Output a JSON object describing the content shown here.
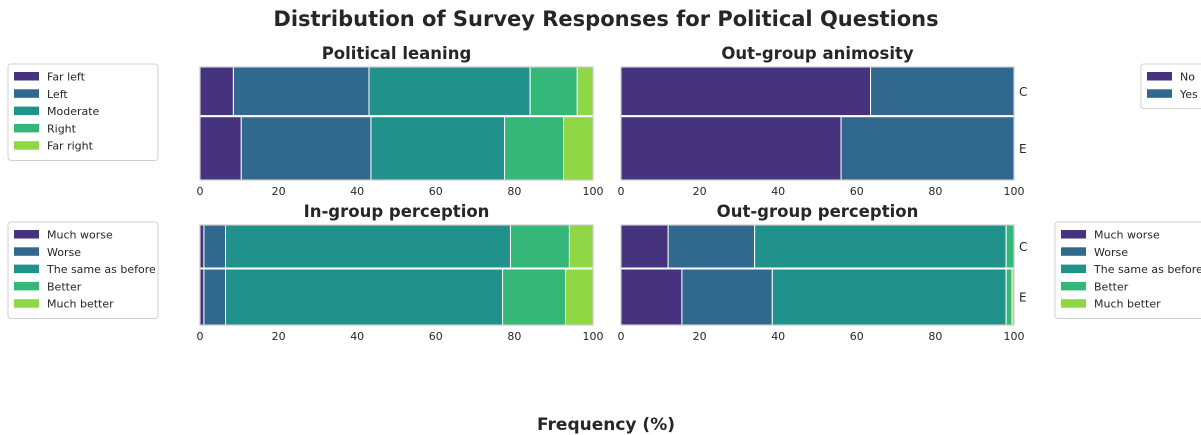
{
  "title": "Distribution of Survey Responses for Political Questions",
  "xlabel": "Frequency (%)",
  "palette": {
    "five": [
      "#46337e",
      "#31688e",
      "#21918c",
      "#35b779",
      "#8fd744"
    ],
    "two": [
      "#46337e",
      "#31688e"
    ],
    "edge": "#ffffff",
    "frame": "#cccccc",
    "text": "#262626"
  },
  "chart_data": [
    {
      "type": "bar",
      "orientation": "horizontal",
      "stacked": true,
      "title": "Political leaning",
      "xlim": [
        0,
        100
      ],
      "xticks": [
        "0",
        "20",
        "40",
        "60",
        "80",
        "100"
      ],
      "categories": [
        "C",
        "E"
      ],
      "show_category_labels": false,
      "legend_position": "left",
      "series": [
        {
          "name": "Far left",
          "values": [
            8.5,
            10.5
          ]
        },
        {
          "name": "Left",
          "values": [
            34.5,
            33.0
          ]
        },
        {
          "name": "Moderate",
          "values": [
            41.0,
            34.0
          ]
        },
        {
          "name": "Right",
          "values": [
            12.0,
            15.0
          ]
        },
        {
          "name": "Far right",
          "values": [
            4.0,
            7.5
          ]
        }
      ]
    },
    {
      "type": "bar",
      "orientation": "horizontal",
      "stacked": true,
      "title": "Out-group animosity",
      "xlim": [
        0,
        100
      ],
      "xticks": [
        "0",
        "20",
        "40",
        "60",
        "80",
        "100"
      ],
      "categories": [
        "C",
        "E"
      ],
      "show_category_labels": true,
      "legend_position": "right",
      "series": [
        {
          "name": "No",
          "values": [
            63.5,
            56.0
          ]
        },
        {
          "name": "Yes",
          "values": [
            36.5,
            44.0
          ]
        }
      ]
    },
    {
      "type": "bar",
      "orientation": "horizontal",
      "stacked": true,
      "title": "In-group perception",
      "xlim": [
        0,
        100
      ],
      "xticks": [
        "0",
        "20",
        "40",
        "60",
        "80",
        "100"
      ],
      "categories": [
        "C",
        "E"
      ],
      "show_category_labels": false,
      "legend_position": "left",
      "series": [
        {
          "name": "Much worse",
          "values": [
            1.0,
            1.0
          ]
        },
        {
          "name": "Worse",
          "values": [
            5.5,
            5.5
          ]
        },
        {
          "name": "The same as before",
          "values": [
            72.5,
            70.5
          ]
        },
        {
          "name": "Better",
          "values": [
            15.0,
            16.0
          ]
        },
        {
          "name": "Much better",
          "values": [
            6.0,
            7.0
          ]
        }
      ]
    },
    {
      "type": "bar",
      "orientation": "horizontal",
      "stacked": true,
      "title": "Out-group perception",
      "xlim": [
        0,
        100
      ],
      "xticks": [
        "0",
        "20",
        "40",
        "60",
        "80",
        "100"
      ],
      "categories": [
        "C",
        "E"
      ],
      "show_category_labels": true,
      "legend_position": "right",
      "series": [
        {
          "name": "Much worse",
          "values": [
            12.0,
            15.5
          ]
        },
        {
          "name": "Worse",
          "values": [
            22.0,
            23.0
          ]
        },
        {
          "name": "The same as before",
          "values": [
            64.0,
            59.5
          ]
        },
        {
          "name": "Better",
          "values": [
            2.0,
            1.5
          ]
        },
        {
          "name": "Much better",
          "values": [
            0.0,
            0.5
          ]
        }
      ]
    }
  ]
}
